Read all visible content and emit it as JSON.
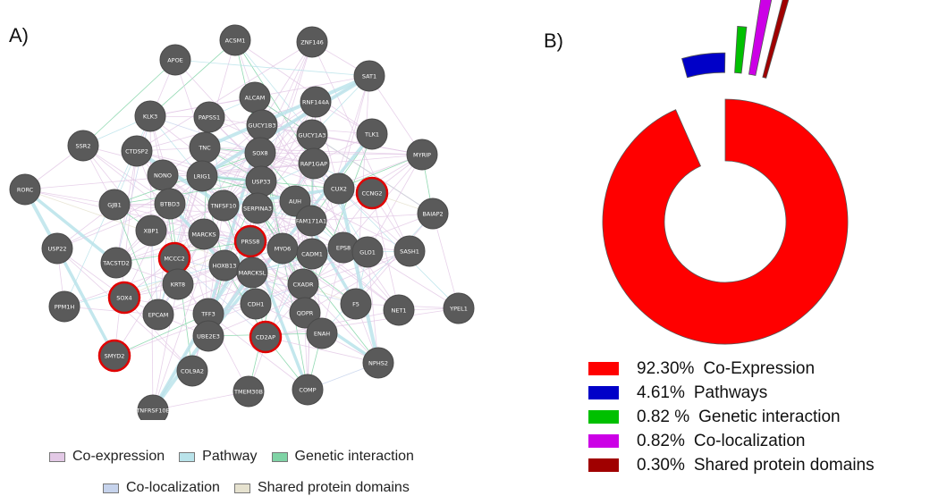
{
  "panel_a": {
    "label": "A)"
  },
  "panel_b": {
    "label": "B)"
  },
  "chart_data": [
    {
      "type": "network",
      "nodes": [
        "ACSM1",
        "ZNF146",
        "APOE",
        "SAT1",
        "ALCAM",
        "RNF144A",
        "KLK3",
        "PAPSS1",
        "GUCY1B3",
        "GUCY1A3",
        "TLK1",
        "SSR2",
        "CTDSP2",
        "TNC",
        "SOX8",
        "MYRIP",
        "RAP1GAP",
        "NONO",
        "LRIG1",
        "USP33",
        "CUX2",
        "CCNG2",
        "RORC",
        "GJB1",
        "BTBD3",
        "TNFSF10",
        "SERPINA3",
        "AUH",
        "BAIAP2",
        "XBP1",
        "FAM171A1",
        "MARCKS",
        "PRSS8",
        "USP22",
        "TACSTD2",
        "MCCC2",
        "MYO6",
        "CADM1",
        "EPS8",
        "GLO1",
        "SASH1",
        "HOXB13",
        "MARCKSL",
        "KRT8",
        "CXADR",
        "SOX4",
        "PPM1H",
        "EPCAM",
        "TFF3",
        "CDH1",
        "QDPR",
        "F5",
        "NET1",
        "YPEL1",
        "UBE2E3",
        "CD2AP",
        "ENAH",
        "SMYD2",
        "COL9A2",
        "NPHS2",
        "TMEM30B",
        "COMP",
        "TNFRSF10E"
      ],
      "highlighted": [
        "CCNG2",
        "PRSS8",
        "MCCC2",
        "SOX4",
        "CD2AP",
        "SMYD2"
      ],
      "legend": [
        "Co-expression",
        "Pathway",
        "Genetic interaction",
        "Co-localization",
        "Shared protein domains"
      ],
      "edge_colors": [
        "#e3c9e6",
        "#b9e3ea",
        "#7fd3a5",
        "#c6d3ec",
        "#e6e2cf"
      ]
    },
    {
      "type": "pie",
      "slices": [
        {
          "name": "Co-Expression",
          "value": 92.3,
          "pct_label": "92.30%",
          "color": "#ff0000"
        },
        {
          "name": "Pathways",
          "value": 4.61,
          "pct_label": "4.61%",
          "color": "#0000c8"
        },
        {
          "name": "Genetic interaction",
          "value": 0.82,
          "pct_label": "0.82 %",
          "color": "#00c000"
        },
        {
          "name": "Co-localization",
          "value": 0.82,
          "pct_label": "0.82%",
          "color": "#cc00e6"
        },
        {
          "name": "Shared protein domains",
          "value": 0.3,
          "pct_label": "0.30%",
          "color": "#a00000"
        }
      ]
    }
  ]
}
